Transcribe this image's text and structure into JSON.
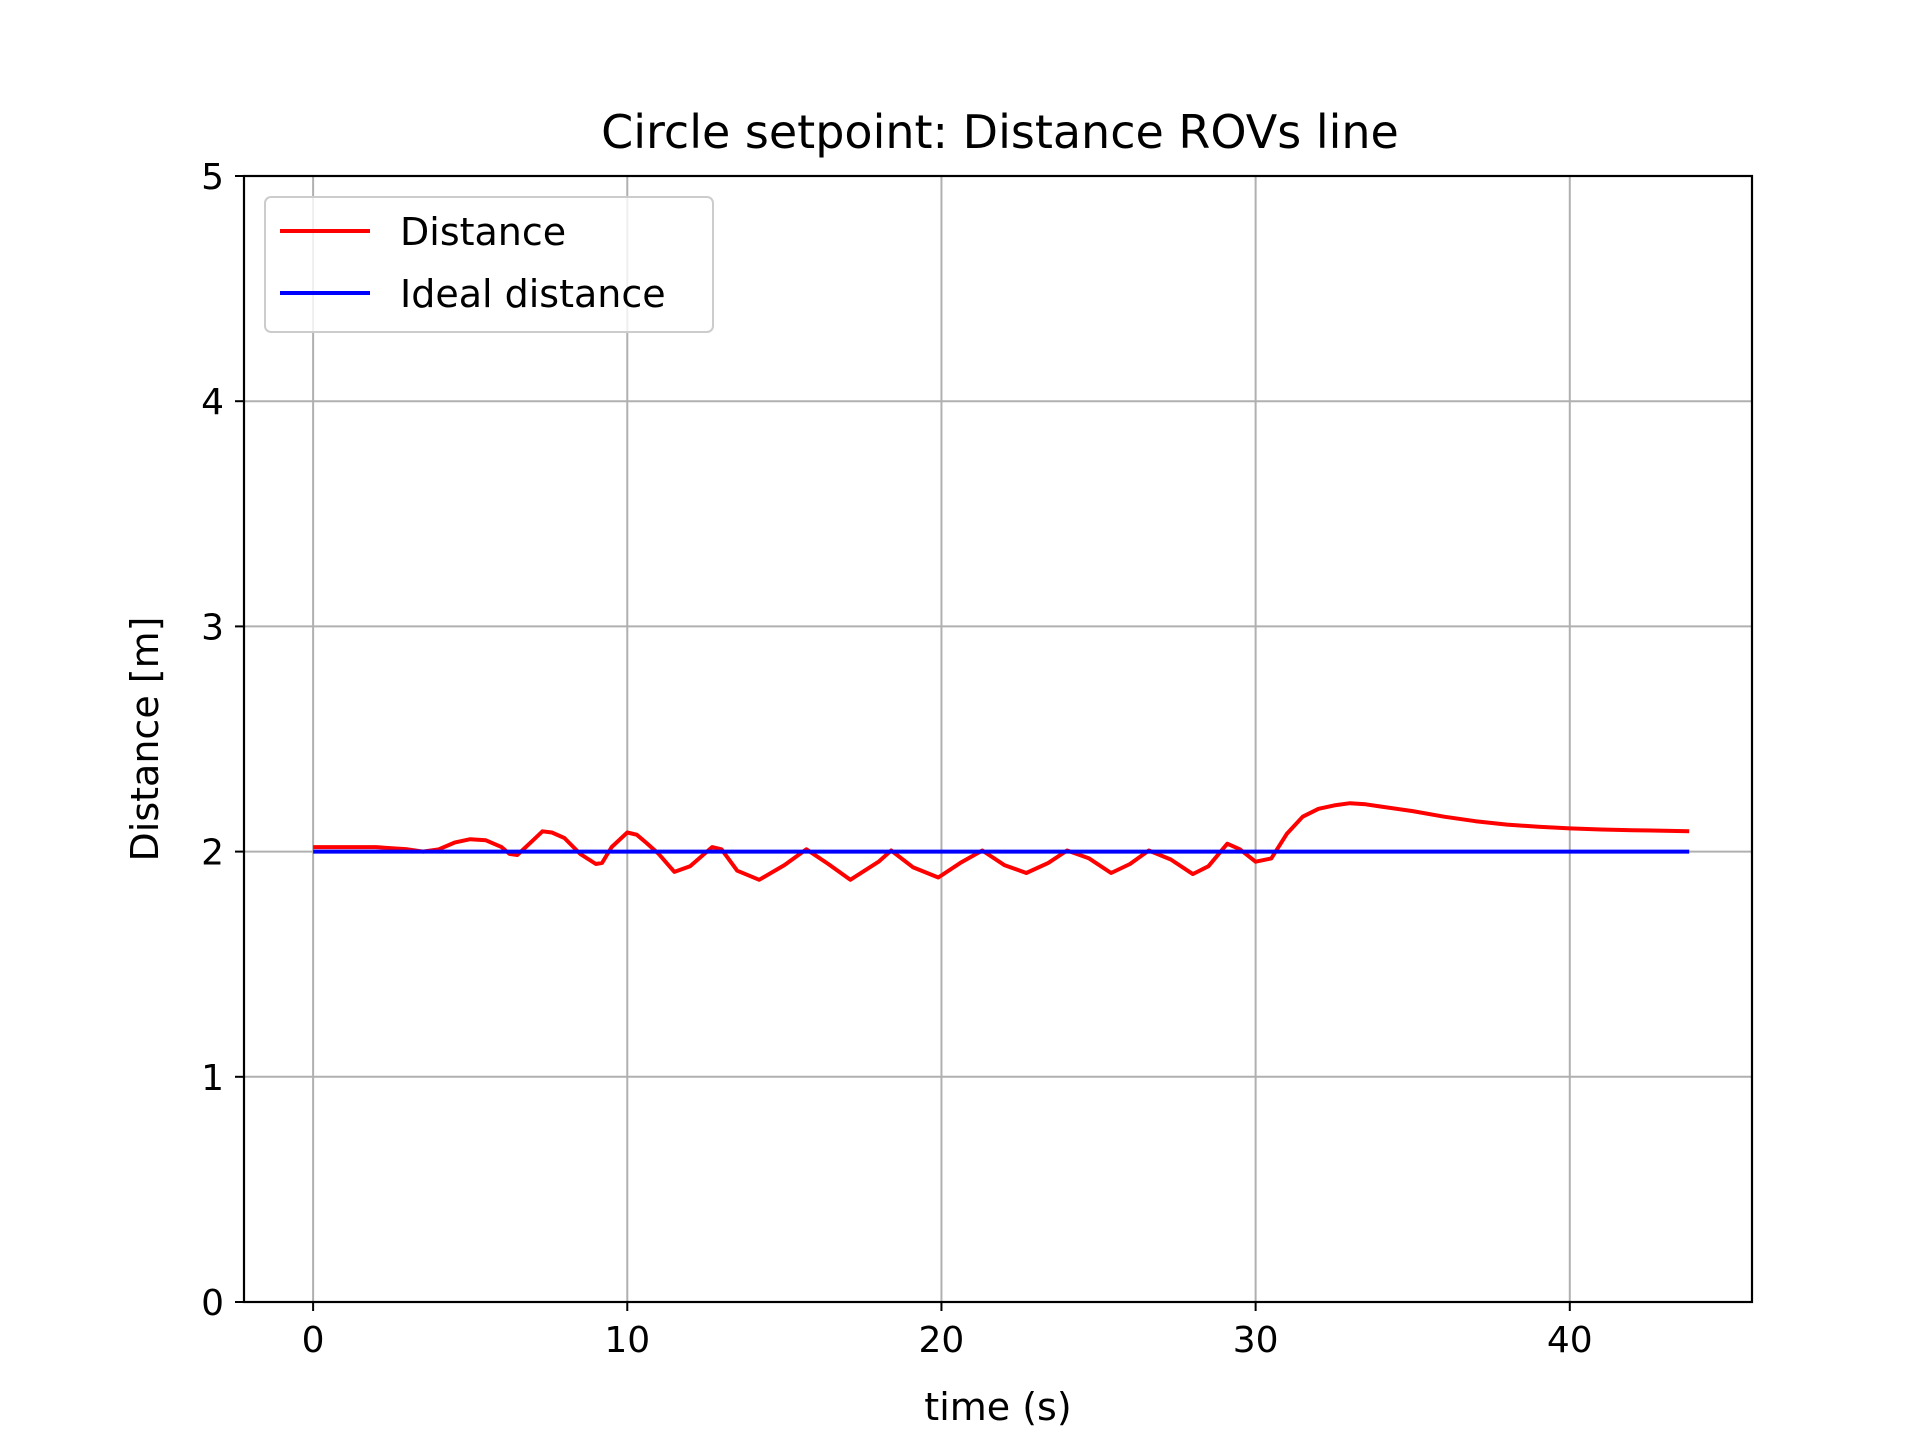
{
  "chart_data": {
    "type": "line",
    "title": "Circle setpoint: Distance ROVs line",
    "xlabel": "time (s)",
    "ylabel": "Distance [m]",
    "xlim": [
      -2.2,
      45.8
    ],
    "ylim": [
      0,
      5
    ],
    "xticks": [
      0,
      10,
      20,
      30,
      40
    ],
    "yticks": [
      0,
      1,
      2,
      3,
      4,
      5
    ],
    "grid": true,
    "legend_placement": "top-left",
    "series": [
      {
        "name": "Distance",
        "color": "#ff0000",
        "x": [
          0,
          1,
          2,
          2.5,
          3,
          3.5,
          4,
          4.5,
          5,
          5.5,
          6,
          6.25,
          6.5,
          7,
          7.3,
          7.6,
          8,
          8.5,
          9,
          9.2,
          9.5,
          10,
          10.3,
          10.6,
          11,
          11.5,
          12,
          12.7,
          13,
          13.5,
          14.2,
          15,
          15.7,
          16.4,
          17.1,
          18,
          18.4,
          19.1,
          19.9,
          20.6,
          21.3,
          22,
          22.7,
          23.4,
          24,
          24.7,
          25.4,
          26,
          26.6,
          27.3,
          28,
          28.5,
          29.1,
          29.5,
          30,
          30.5,
          31,
          31.5,
          32,
          32.5,
          33,
          33.5,
          34,
          35,
          36,
          37,
          38,
          39,
          40,
          41,
          42,
          43,
          43.8
        ],
        "y": [
          2.02,
          2.02,
          2.02,
          2.015,
          2.01,
          2.0,
          2.01,
          2.04,
          2.055,
          2.05,
          2.02,
          1.99,
          1.985,
          2.05,
          2.09,
          2.085,
          2.06,
          1.99,
          1.945,
          1.95,
          2.02,
          2.085,
          2.075,
          2.04,
          1.99,
          1.91,
          1.935,
          2.02,
          2.01,
          1.915,
          1.875,
          1.94,
          2.01,
          1.945,
          1.875,
          1.955,
          2.005,
          1.93,
          1.885,
          1.95,
          2.005,
          1.94,
          1.905,
          1.95,
          2.005,
          1.97,
          1.905,
          1.945,
          2.005,
          1.965,
          1.9,
          1.935,
          2.035,
          2.01,
          1.955,
          1.97,
          2.08,
          2.155,
          2.19,
          2.205,
          2.215,
          2.21,
          2.2,
          2.18,
          2.155,
          2.135,
          2.12,
          2.11,
          2.103,
          2.098,
          2.095,
          2.093,
          2.09
        ]
      },
      {
        "name": "Ideal distance",
        "color": "#0000ff",
        "x": [
          0,
          43.8
        ],
        "y": [
          2,
          2
        ]
      }
    ]
  }
}
